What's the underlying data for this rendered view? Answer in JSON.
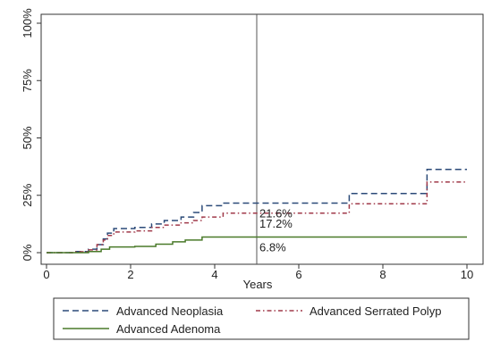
{
  "chart_data": {
    "type": "line",
    "xlabel": "Years",
    "ylabel": "",
    "xlim": [
      0,
      10
    ],
    "ylim": [
      0,
      100
    ],
    "x_ticks": [
      0,
      2,
      4,
      6,
      8,
      10
    ],
    "x_tick_labels": [
      "0",
      "2",
      "4",
      "6",
      "8",
      "10"
    ],
    "y_ticks": [
      0,
      25,
      50,
      75,
      100
    ],
    "y_tick_labels": [
      "0%",
      "25%",
      "50%",
      "75%",
      "100%"
    ],
    "grid": false,
    "reference_line_x": 5,
    "legend_position": "bottom",
    "series": [
      {
        "name": "Advanced Neoplasia",
        "color": "#2b4a78",
        "dash": "dash",
        "steps": [
          [
            0,
            0
          ],
          [
            0.7,
            0.5
          ],
          [
            1.0,
            1.5
          ],
          [
            1.2,
            3.5
          ],
          [
            1.35,
            6
          ],
          [
            1.45,
            8.5
          ],
          [
            1.6,
            10.5
          ],
          [
            2.1,
            11
          ],
          [
            2.5,
            12.5
          ],
          [
            2.8,
            14
          ],
          [
            3.2,
            15.5
          ],
          [
            3.5,
            17.5
          ],
          [
            3.7,
            20.5
          ],
          [
            4.2,
            21.6
          ],
          [
            7.2,
            25.8
          ],
          [
            9.05,
            36.3
          ],
          [
            9.4,
            36.3
          ],
          [
            10,
            36.3
          ]
        ]
      },
      {
        "name": "Advanced Serrated Polyp",
        "color": "#a03a4a",
        "dash": "dashdot",
        "steps": [
          [
            0,
            0
          ],
          [
            0.7,
            0.4
          ],
          [
            1.0,
            1.2
          ],
          [
            1.2,
            3.5
          ],
          [
            1.35,
            5.5
          ],
          [
            1.45,
            7.5
          ],
          [
            1.6,
            9
          ],
          [
            2.1,
            9.5
          ],
          [
            2.5,
            11
          ],
          [
            2.8,
            12
          ],
          [
            3.2,
            13
          ],
          [
            3.5,
            14
          ],
          [
            3.7,
            15.5
          ],
          [
            4.2,
            17.2
          ],
          [
            7.2,
            21.3
          ],
          [
            9.05,
            30.8
          ],
          [
            9.4,
            30.8
          ],
          [
            10,
            30.8
          ]
        ]
      },
      {
        "name": "Advanced Adenoma",
        "color": "#4a7a2a",
        "dash": "solid",
        "steps": [
          [
            0,
            0
          ],
          [
            1.0,
            0.5
          ],
          [
            1.3,
            1.5
          ],
          [
            1.5,
            2.5
          ],
          [
            2.1,
            2.7
          ],
          [
            2.6,
            3.7
          ],
          [
            3.0,
            4.7
          ],
          [
            3.3,
            5.5
          ],
          [
            3.7,
            6.8
          ],
          [
            10,
            6.8
          ]
        ]
      }
    ],
    "annotations": [
      {
        "text": "21.6%",
        "x": 5,
        "y": 21.6
      },
      {
        "text": "17.2%",
        "x": 5,
        "y": 17.2
      },
      {
        "text": "6.8%",
        "x": 5,
        "y": 6.8
      }
    ]
  }
}
